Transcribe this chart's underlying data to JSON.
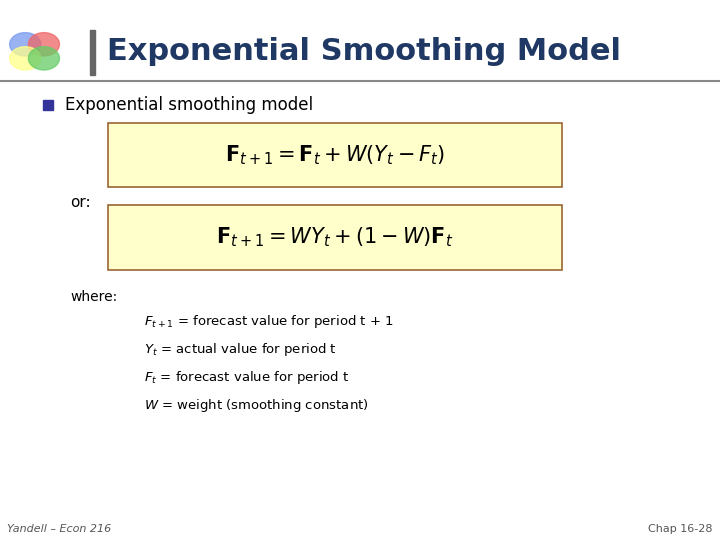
{
  "title": "Exponential Smoothing Model",
  "title_color": "#1F3864",
  "background_color": "#FFFFFF",
  "bullet_text": "Exponential smoothing model",
  "or_text": "or:",
  "where_text": "where:",
  "definitions": [
    "$F_{t+1}$ = forecast value for period t + 1",
    "$Y_t$ = actual value for period t",
    "$F_t$ = forecast value for period t",
    "$W$ = weight (smoothing constant)"
  ],
  "footer_left": "Yandell – Econ 216",
  "footer_right": "Chap 16-28",
  "formula_bg": "#FFFFCC",
  "formula_border": "#996633",
  "bullet_color": "#333399",
  "separator_color": "#888888",
  "title_fontsize": 22,
  "bullet_fontsize": 12,
  "formula_fontsize": 15,
  "or_fontsize": 11,
  "where_fontsize": 10,
  "def_fontsize": 9.5,
  "footer_fontsize": 8
}
